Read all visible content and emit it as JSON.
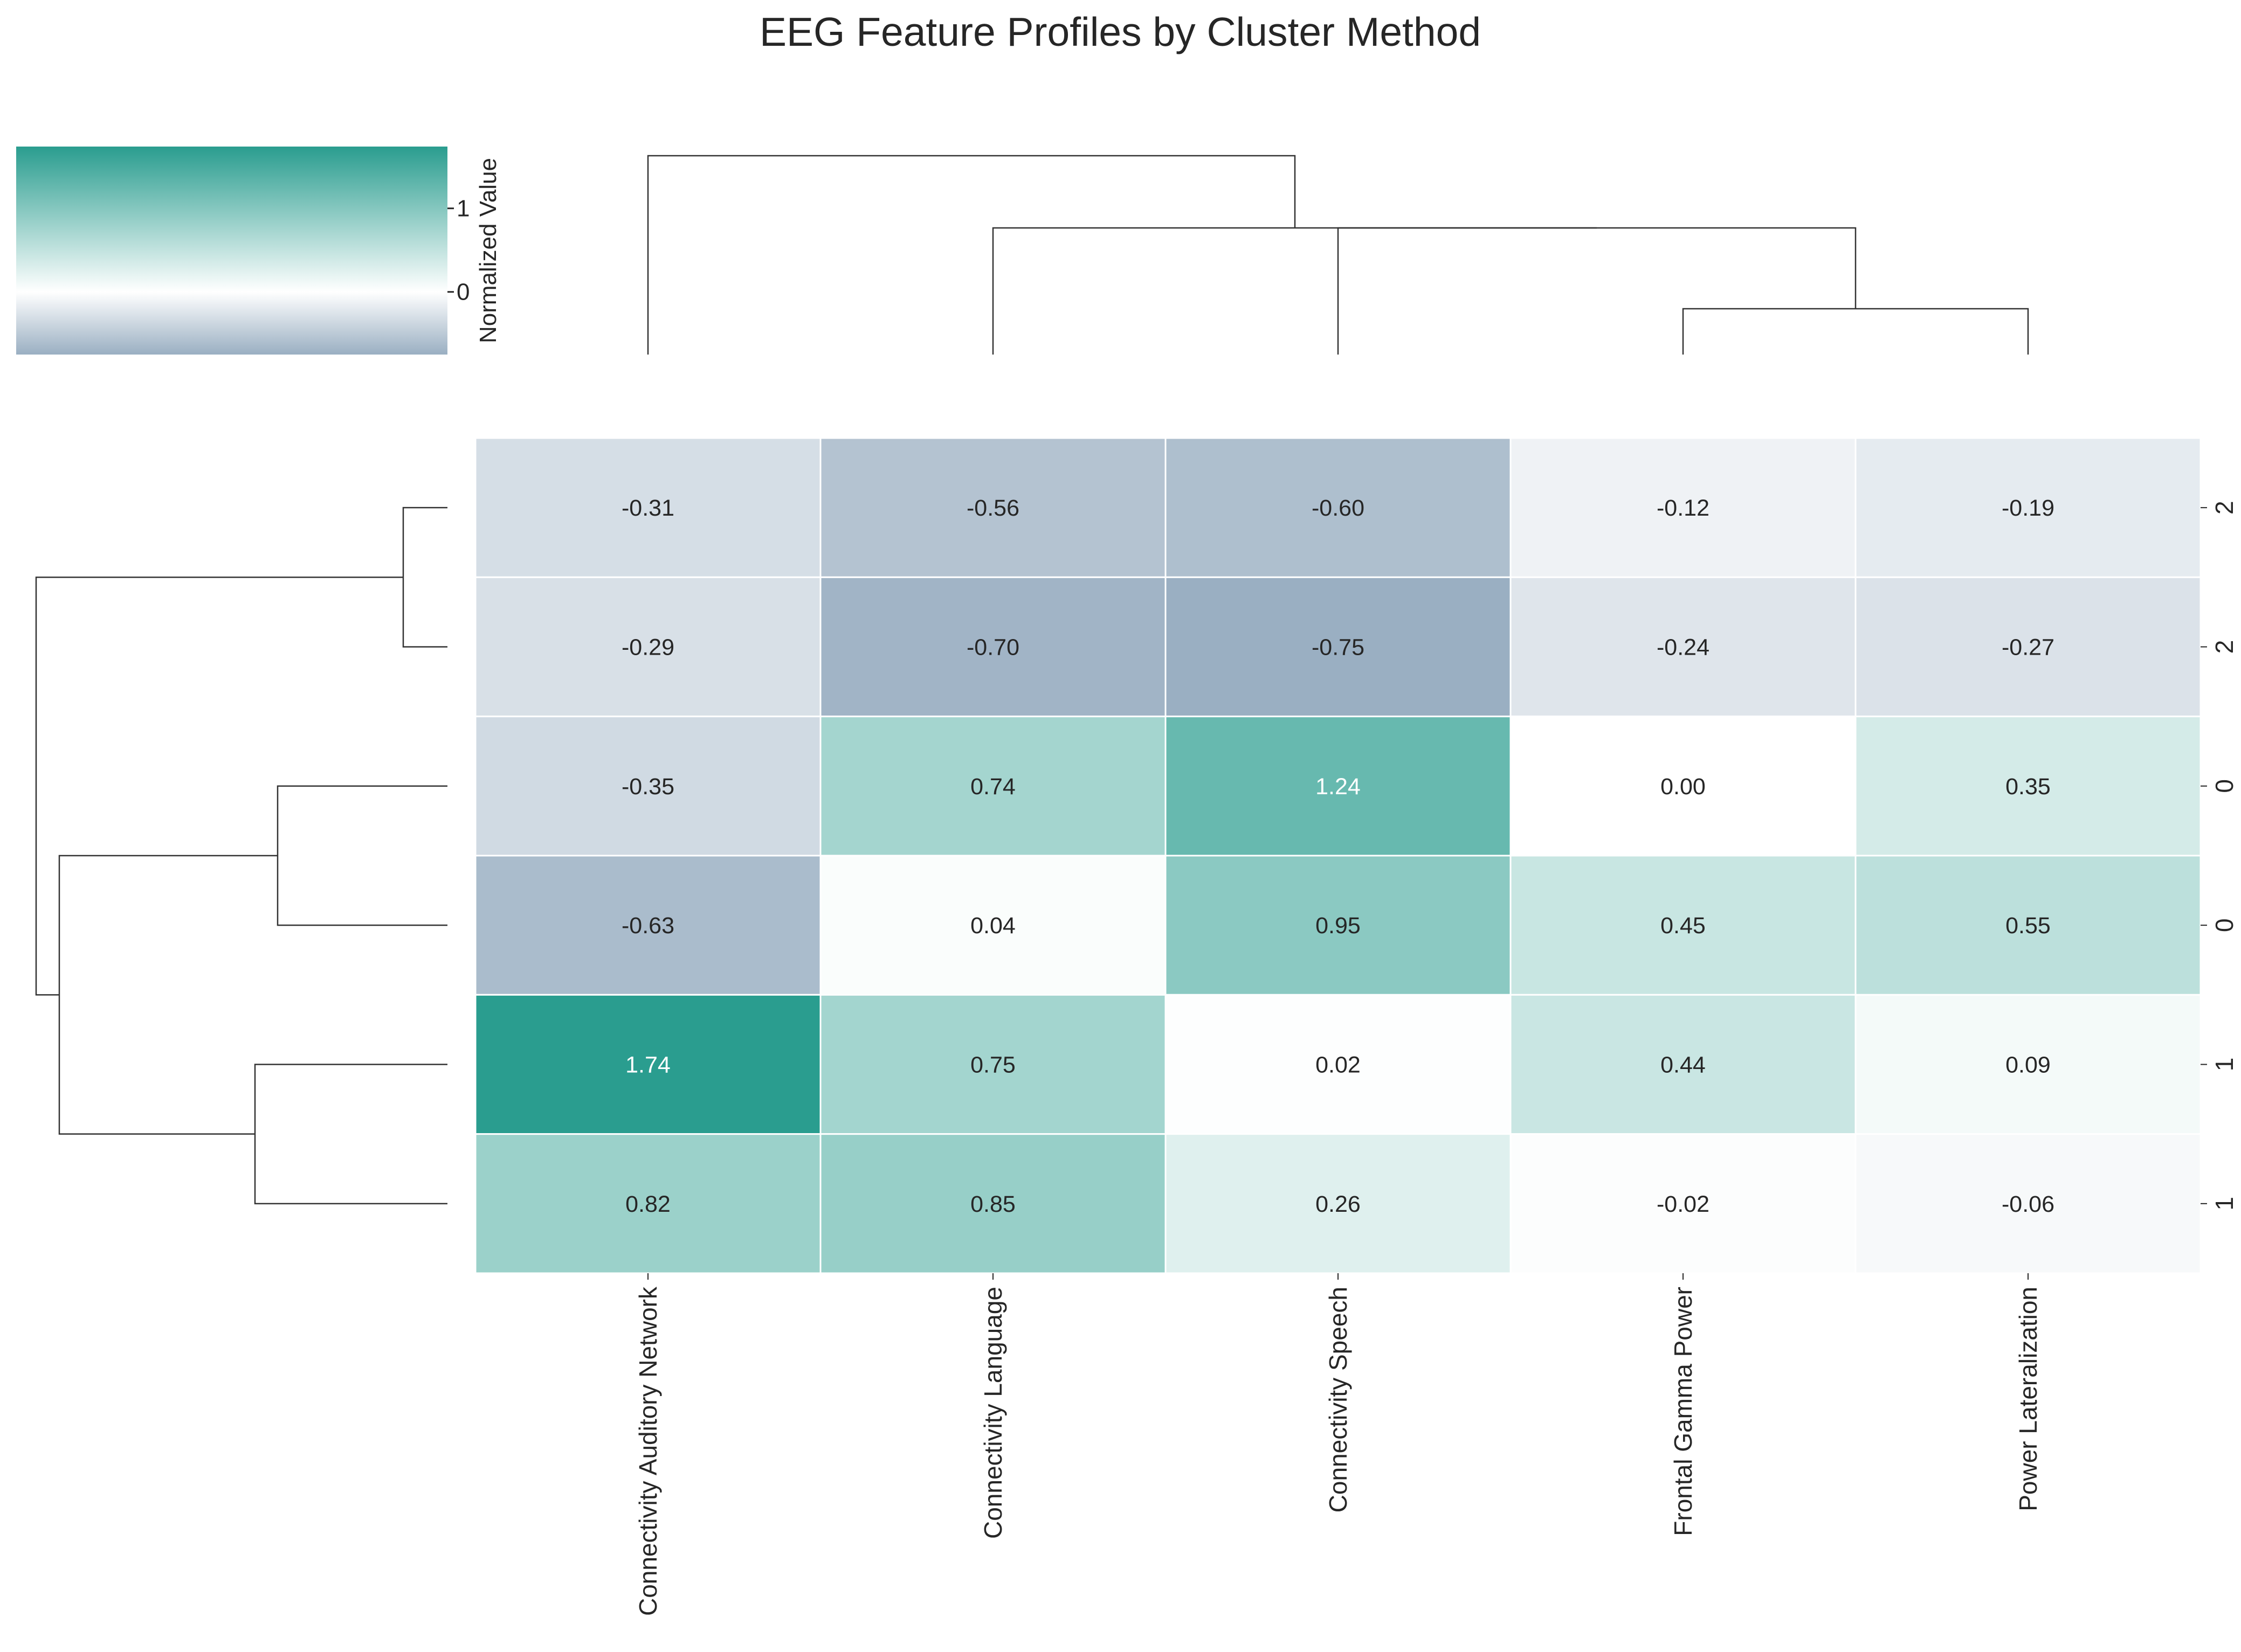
{
  "chart_data": {
    "type": "heatmap",
    "title": "EEG Feature Profiles by Cluster Method",
    "columns": [
      "Connectivity Auditory Network",
      "Connectivity Language",
      "Connectivity Speech",
      "Frontal Gamma Power",
      "Power Lateralization"
    ],
    "row_labels": [
      "2",
      "2",
      "0",
      "0",
      "1",
      "1"
    ],
    "values": [
      [
        -0.31,
        -0.56,
        -0.6,
        -0.12,
        -0.19
      ],
      [
        -0.29,
        -0.7,
        -0.75,
        -0.24,
        -0.27
      ],
      [
        -0.35,
        0.74,
        1.24,
        0.0,
        0.35
      ],
      [
        -0.63,
        0.04,
        0.95,
        0.45,
        0.55
      ],
      [
        1.74,
        0.75,
        0.02,
        0.44,
        0.09
      ],
      [
        0.82,
        0.85,
        0.26,
        -0.02,
        -0.06
      ]
    ],
    "value_labels": [
      [
        "-0.31",
        "-0.56",
        "-0.60",
        "-0.12",
        "-0.19"
      ],
      [
        "-0.29",
        "-0.70",
        "-0.75",
        "-0.24",
        "-0.27"
      ],
      [
        "-0.35",
        "0.74",
        "1.24",
        "0.00",
        "0.35"
      ],
      [
        "-0.63",
        "0.04",
        "0.95",
        "0.45",
        "0.55"
      ],
      [
        "1.74",
        "0.75",
        "0.02",
        "0.44",
        "0.09"
      ],
      [
        "0.82",
        "0.85",
        "0.26",
        "-0.02",
        "-0.06"
      ]
    ],
    "colorbar": {
      "label": "Normalized Value",
      "vmin": -0.75,
      "vmax": 1.74,
      "ticks": [
        0,
        1
      ],
      "tick_labels": [
        "0",
        "1"
      ],
      "colors": {
        "low": "#9aafc2",
        "mid": "#ffffff",
        "high": "#2a9d8f"
      }
    },
    "row_dendrogram": [
      [
        0,
        1
      ],
      [
        2,
        3
      ],
      [
        4,
        5
      ],
      [
        [
          2,
          3
        ],
        [
          4,
          5
        ]
      ],
      [
        [
          0,
          1
        ],
        [
          [
            2,
            3
          ],
          [
            4,
            5
          ]
        ]
      ]
    ],
    "col_dendrogram": [
      [
        3,
        4
      ],
      [
        2,
        [
          3,
          4
        ]
      ],
      [
        1,
        [
          2,
          [
            3,
            4
          ]
        ]
      ],
      [
        0,
        [
          1,
          [
            2,
            [
              3,
              4
            ]
          ]
        ]
      ]
    ],
    "grid": false
  }
}
